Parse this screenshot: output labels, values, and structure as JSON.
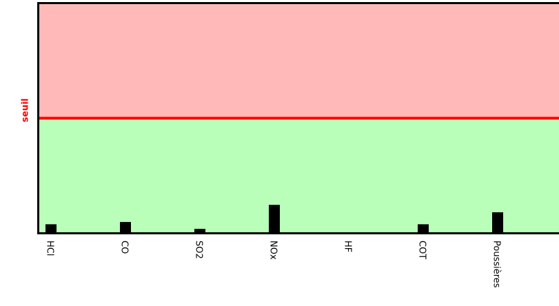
{
  "chart_data": {
    "type": "bar",
    "categories": [
      "HCl",
      "CO",
      "SO2",
      "NOx",
      "HF",
      "COT",
      "Poussières"
    ],
    "values": [
      7,
      9,
      3,
      24,
      0,
      7,
      17.5
    ],
    "color": "#000000",
    "ylim": [
      0,
      200
    ],
    "threshold": 100,
    "threshold_label": "seuil",
    "threshold_color": "#ff0000",
    "above_color": "#ffb9b9",
    "below_color": "#b9ffb9"
  }
}
